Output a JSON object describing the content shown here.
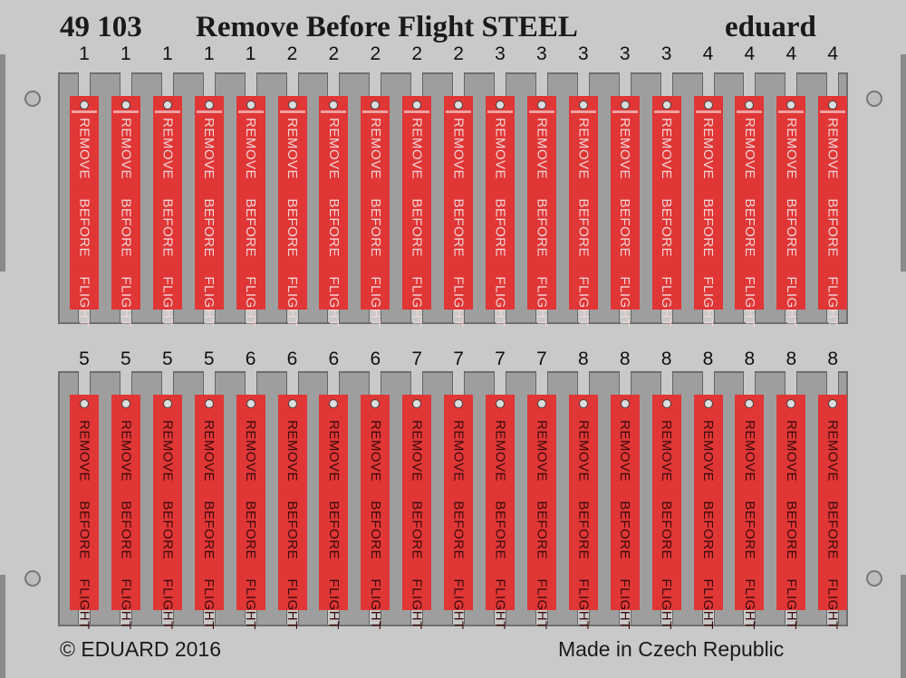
{
  "title": {
    "code": "49 103",
    "name": "Remove Before Flight STEEL",
    "brand": "eduard"
  },
  "colors": {
    "tag": "#e03636",
    "fret": "#c9c9c9",
    "panel": "#9e9e9e"
  },
  "rows": [
    {
      "text_color": "light",
      "tags": [
        {
          "n": "1",
          "text": "REMOVE BEFORE FLIGHT"
        },
        {
          "n": "1",
          "text": "REMOVE BEFORE FLIGHT"
        },
        {
          "n": "1",
          "text": "REMOVE BEFORE FLIGHT"
        },
        {
          "n": "1",
          "text": "REMOVE BEFORE FLIGHT"
        },
        {
          "n": "1",
          "text": "REMOVE BEFORE FLIGHT"
        },
        {
          "n": "2",
          "text": "REMOVE BEFORE FLIGHT"
        },
        {
          "n": "2",
          "text": "REMOVE BEFORE FLIGHT"
        },
        {
          "n": "2",
          "text": "REMOVE BEFORE FLIGHT"
        },
        {
          "n": "2",
          "text": "REMOVE BEFORE FLIGHT"
        },
        {
          "n": "2",
          "text": "REMOVE BEFORE FLIGHT"
        },
        {
          "n": "3",
          "text": "REMOVE BEFORE FLIGHT"
        },
        {
          "n": "3",
          "text": "REMOVE BEFORE FLIGHT"
        },
        {
          "n": "3",
          "text": "REMOVE BEFORE FLIGHT"
        },
        {
          "n": "3",
          "text": "REMOVE BEFORE FLIGHT"
        },
        {
          "n": "3",
          "text": "REMOVE BEFORE FLIGHT"
        },
        {
          "n": "4",
          "text": "REMOVE BEFORE FLIGHT"
        },
        {
          "n": "4",
          "text": "REMOVE BEFORE FLIGHT"
        },
        {
          "n": "4",
          "text": "REMOVE BEFORE FLIGHT"
        },
        {
          "n": "4",
          "text": "REMOVE BEFORE FLIGHT"
        }
      ]
    },
    {
      "text_color": "dark",
      "tags": [
        {
          "n": "5",
          "text": "REMOVE BEFORE FLIGHT"
        },
        {
          "n": "5",
          "text": "REMOVE BEFORE FLIGHT"
        },
        {
          "n": "5",
          "text": "REMOVE BEFORE FLIGHT"
        },
        {
          "n": "5",
          "text": "REMOVE BEFORE FLIGHT"
        },
        {
          "n": "6",
          "text": "REMOVE BEFORE FLIGHT"
        },
        {
          "n": "6",
          "text": "REMOVE BEFORE FLIGHT"
        },
        {
          "n": "6",
          "text": "REMOVE BEFORE FLIGHT"
        },
        {
          "n": "6",
          "text": "REMOVE BEFORE FLIGHT"
        },
        {
          "n": "7",
          "text": "REMOVE BEFORE FLIGHT"
        },
        {
          "n": "7",
          "text": "REMOVE BEFORE FLIGHT"
        },
        {
          "n": "7",
          "text": "REMOVE BEFORE FLIGHT"
        },
        {
          "n": "7",
          "text": "REMOVE BEFORE FLIGHT"
        },
        {
          "n": "8",
          "text": "REMOVE BEFORE FLIGHT"
        },
        {
          "n": "8",
          "text": "REMOVE BEFORE FLIGHT"
        },
        {
          "n": "8",
          "text": "REMOVE BEFORE FLIGHT"
        },
        {
          "n": "8",
          "text": "REMOVE BEFORE FLIGHT"
        },
        {
          "n": "8",
          "text": "REMOVE BEFORE FLIGHT"
        },
        {
          "n": "8",
          "text": "REMOVE BEFORE FLIGHT"
        },
        {
          "n": "8",
          "text": "REMOVE BEFORE FLIGHT"
        }
      ]
    }
  ],
  "footer": {
    "copyright": "© EDUARD 2016",
    "origin": "Made in Czech Republic"
  }
}
